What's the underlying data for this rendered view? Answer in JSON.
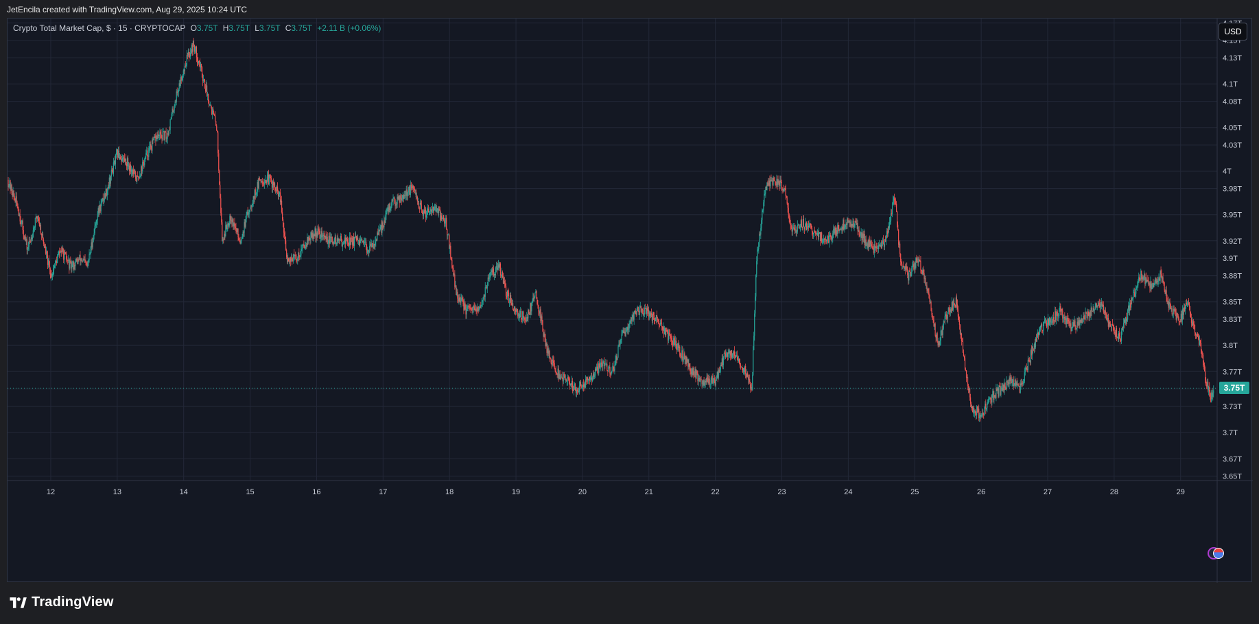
{
  "credit": "JetEncila created with TradingView.com, Aug 29, 2025 10:24 UTC",
  "legend": {
    "symbol": "Crypto Total Market Cap, $ · 15 · CRYPTOCAP",
    "o_label": "O",
    "o_value": "3.75T",
    "h_label": "H",
    "h_value": "3.75T",
    "l_label": "L",
    "l_value": "3.75T",
    "c_label": "C",
    "c_value": "3.75T",
    "change": "+2.11 B (+0.06%)"
  },
  "currency": "USD",
  "last_price_label": "3.75T",
  "brand": "TradingView",
  "colors": {
    "up": "#26a69a",
    "down": "#ef5350",
    "background": "#141823",
    "grid": "#232838",
    "axis_text": "#c8ccd6"
  },
  "chart_data": {
    "type": "candlestick",
    "title": "Crypto Total Market Cap, $ · 15 · CRYPTOCAP",
    "x_ticks": [
      "12",
      "13",
      "14",
      "15",
      "16",
      "17",
      "18",
      "19",
      "20",
      "21",
      "22",
      "23",
      "24",
      "25",
      "26",
      "27",
      "28",
      "29"
    ],
    "y_ticks": [
      "4.17T",
      "4.15T",
      "4.13T",
      "4.1T",
      "4.08T",
      "4.05T",
      "4.03T",
      "4T",
      "3.98T",
      "3.95T",
      "3.92T",
      "3.9T",
      "3.88T",
      "3.85T",
      "3.83T",
      "3.8T",
      "3.77T",
      "3.75T",
      "3.73T",
      "3.7T",
      "3.67T",
      "3.65T"
    ],
    "ylim": [
      3.645,
      4.175
    ],
    "xlim": [
      11.35,
      29.55
    ],
    "unit": "T USD",
    "last_price": 3.751,
    "price_path": [
      [
        11.35,
        3.99
      ],
      [
        11.5,
        3.96
      ],
      [
        11.65,
        3.91
      ],
      [
        11.8,
        3.95
      ],
      [
        12.0,
        3.88
      ],
      [
        12.15,
        3.91
      ],
      [
        12.3,
        3.89
      ],
      [
        12.45,
        3.9
      ],
      [
        12.55,
        3.89
      ],
      [
        12.7,
        3.95
      ],
      [
        12.85,
        3.98
      ],
      [
        13.0,
        4.02
      ],
      [
        13.15,
        4.01
      ],
      [
        13.3,
        3.99
      ],
      [
        13.45,
        4.02
      ],
      [
        13.6,
        4.04
      ],
      [
        13.75,
        4.04
      ],
      [
        13.9,
        4.09
      ],
      [
        14.05,
        4.13
      ],
      [
        14.15,
        4.145
      ],
      [
        14.25,
        4.12
      ],
      [
        14.35,
        4.09
      ],
      [
        14.5,
        4.05
      ],
      [
        14.58,
        3.92
      ],
      [
        14.7,
        3.95
      ],
      [
        14.85,
        3.92
      ],
      [
        15.0,
        3.96
      ],
      [
        15.15,
        3.99
      ],
      [
        15.3,
        3.99
      ],
      [
        15.45,
        3.97
      ],
      [
        15.55,
        3.9
      ],
      [
        15.7,
        3.9
      ],
      [
        15.85,
        3.92
      ],
      [
        16.0,
        3.93
      ],
      [
        16.2,
        3.92
      ],
      [
        16.4,
        3.92
      ],
      [
        16.6,
        3.92
      ],
      [
        16.8,
        3.91
      ],
      [
        16.95,
        3.93
      ],
      [
        17.1,
        3.96
      ],
      [
        17.25,
        3.97
      ],
      [
        17.45,
        3.98
      ],
      [
        17.6,
        3.95
      ],
      [
        17.75,
        3.96
      ],
      [
        17.95,
        3.94
      ],
      [
        18.1,
        3.86
      ],
      [
        18.25,
        3.84
      ],
      [
        18.45,
        3.84
      ],
      [
        18.6,
        3.88
      ],
      [
        18.75,
        3.89
      ],
      [
        18.85,
        3.86
      ],
      [
        19.0,
        3.84
      ],
      [
        19.15,
        3.83
      ],
      [
        19.3,
        3.86
      ],
      [
        19.45,
        3.8
      ],
      [
        19.6,
        3.77
      ],
      [
        19.75,
        3.76
      ],
      [
        19.9,
        3.75
      ],
      [
        20.1,
        3.76
      ],
      [
        20.3,
        3.78
      ],
      [
        20.45,
        3.77
      ],
      [
        20.6,
        3.81
      ],
      [
        20.8,
        3.84
      ],
      [
        20.95,
        3.84
      ],
      [
        21.1,
        3.83
      ],
      [
        21.3,
        3.81
      ],
      [
        21.5,
        3.79
      ],
      [
        21.65,
        3.77
      ],
      [
        21.8,
        3.76
      ],
      [
        22.0,
        3.76
      ],
      [
        22.15,
        3.79
      ],
      [
        22.3,
        3.79
      ],
      [
        22.45,
        3.77
      ],
      [
        22.55,
        3.75
      ],
      [
        22.62,
        3.9
      ],
      [
        22.75,
        3.98
      ],
      [
        22.9,
        3.99
      ],
      [
        23.05,
        3.98
      ],
      [
        23.15,
        3.93
      ],
      [
        23.3,
        3.94
      ],
      [
        23.5,
        3.93
      ],
      [
        23.65,
        3.92
      ],
      [
        23.8,
        3.93
      ],
      [
        23.95,
        3.94
      ],
      [
        24.1,
        3.94
      ],
      [
        24.25,
        3.92
      ],
      [
        24.4,
        3.91
      ],
      [
        24.55,
        3.92
      ],
      [
        24.7,
        3.97
      ],
      [
        24.78,
        3.9
      ],
      [
        24.9,
        3.88
      ],
      [
        25.05,
        3.9
      ],
      [
        25.2,
        3.86
      ],
      [
        25.35,
        3.8
      ],
      [
        25.5,
        3.84
      ],
      [
        25.62,
        3.85
      ],
      [
        25.75,
        3.78
      ],
      [
        25.85,
        3.73
      ],
      [
        26.0,
        3.72
      ],
      [
        26.15,
        3.74
      ],
      [
        26.3,
        3.75
      ],
      [
        26.45,
        3.76
      ],
      [
        26.6,
        3.75
      ],
      [
        26.75,
        3.79
      ],
      [
        26.9,
        3.82
      ],
      [
        27.05,
        3.83
      ],
      [
        27.2,
        3.84
      ],
      [
        27.35,
        3.82
      ],
      [
        27.5,
        3.83
      ],
      [
        27.65,
        3.84
      ],
      [
        27.8,
        3.85
      ],
      [
        27.95,
        3.82
      ],
      [
        28.1,
        3.81
      ],
      [
        28.25,
        3.85
      ],
      [
        28.4,
        3.88
      ],
      [
        28.55,
        3.87
      ],
      [
        28.7,
        3.88
      ],
      [
        28.85,
        3.84
      ],
      [
        29.0,
        3.83
      ],
      [
        29.1,
        3.85
      ],
      [
        29.2,
        3.82
      ],
      [
        29.3,
        3.8
      ],
      [
        29.38,
        3.76
      ],
      [
        29.45,
        3.74
      ],
      [
        29.5,
        3.751
      ]
    ]
  }
}
